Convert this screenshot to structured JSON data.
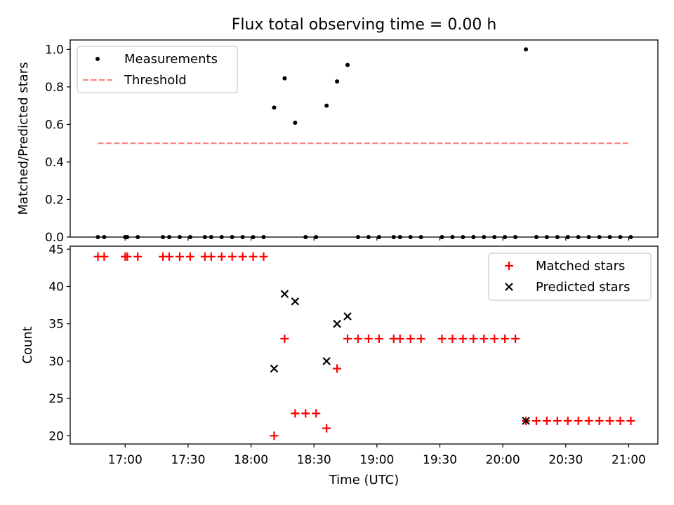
{
  "chart_data": {
    "title": "Flux total observing time = 0.00 h",
    "xlabel": "Time (UTC)",
    "x_ticks": [
      "17:00",
      "17:30",
      "18:00",
      "18:30",
      "19:00",
      "19:30",
      "20:00",
      "20:30",
      "21:00"
    ],
    "x_tick_minutes": [
      1020,
      1050,
      1080,
      1110,
      1140,
      1170,
      1200,
      1230,
      1260
    ],
    "x_range_minutes": [
      993.8,
      1273.9
    ],
    "panels": [
      {
        "type": "scatter",
        "ylabel": "Matched/Predicted stars",
        "ylim": [
          0,
          1.05
        ],
        "y_ticks": [
          0.0,
          0.2,
          0.4,
          0.6,
          0.8,
          1.0
        ],
        "legend_position": "upper-left",
        "series": [
          {
            "name": "Measurements",
            "marker": "dot",
            "color": "#000000",
            "x": [
              "16:47",
              "16:50",
              "17:00",
              "17:01",
              "17:06",
              "17:18",
              "17:21",
              "17:26",
              "17:31",
              "17:38",
              "17:41",
              "17:46",
              "17:51",
              "17:56",
              "18:01",
              "18:06",
              "18:11",
              "18:16",
              "18:21",
              "18:26",
              "18:31",
              "18:36",
              "18:41",
              "18:46",
              "18:51",
              "18:56",
              "19:01",
              "19:08",
              "19:11",
              "19:16",
              "19:21",
              "19:31",
              "19:36",
              "19:41",
              "19:46",
              "19:51",
              "19:56",
              "20:01",
              "20:06",
              "20:11",
              "20:16",
              "20:21",
              "20:26",
              "20:31",
              "20:36",
              "20:41",
              "20:46",
              "20:51",
              "20:56",
              "21:01"
            ],
            "y": [
              0,
              0,
              0,
              0,
              0,
              0,
              0,
              0,
              0,
              0,
              0,
              0,
              0,
              0,
              0,
              0,
              0.69,
              0.846,
              0.609,
              0,
              0,
              0.7,
              0.829,
              0.917,
              0,
              0,
              0,
              0,
              0,
              0,
              0,
              0,
              0,
              0,
              0,
              0,
              0,
              0,
              0,
              1.0,
              0,
              0,
              0,
              0,
              0,
              0,
              0,
              0,
              0,
              0
            ]
          },
          {
            "name": "Threshold",
            "style": "dashed",
            "color": "#ff7b7b",
            "x": [
              "16:47",
              "21:01"
            ],
            "y": [
              0.5,
              0.5
            ]
          }
        ]
      },
      {
        "type": "scatter",
        "ylabel": "Count",
        "ylim": [
          18.9,
          45.4
        ],
        "y_ticks": [
          20,
          25,
          30,
          35,
          40,
          45
        ],
        "legend_position": "upper-right",
        "series": [
          {
            "name": "Matched stars",
            "marker": "plus",
            "color": "#ff0000",
            "x": [
              "16:47",
              "16:50",
              "17:00",
              "17:01",
              "17:06",
              "17:18",
              "17:21",
              "17:26",
              "17:31",
              "17:38",
              "17:41",
              "17:46",
              "17:51",
              "17:56",
              "18:01",
              "18:06",
              "18:11",
              "18:16",
              "18:21",
              "18:26",
              "18:31",
              "18:36",
              "18:41",
              "18:46",
              "18:51",
              "18:56",
              "19:01",
              "19:08",
              "19:11",
              "19:16",
              "19:21",
              "19:31",
              "19:36",
              "19:41",
              "19:46",
              "19:51",
              "19:56",
              "20:01",
              "20:06",
              "20:11",
              "20:16",
              "20:21",
              "20:26",
              "20:31",
              "20:36",
              "20:41",
              "20:46",
              "20:51",
              "20:56",
              "21:01"
            ],
            "y": [
              44,
              44,
              44,
              44,
              44,
              44,
              44,
              44,
              44,
              44,
              44,
              44,
              44,
              44,
              44,
              44,
              20,
              33,
              23,
              23,
              23,
              21,
              29,
              33,
              33,
              33,
              33,
              33,
              33,
              33,
              33,
              33,
              33,
              33,
              33,
              33,
              33,
              33,
              33,
              22,
              22,
              22,
              22,
              22,
              22,
              22,
              22,
              22,
              22,
              22
            ]
          },
          {
            "name": "Predicted stars",
            "marker": "x",
            "color": "#000000",
            "x": [
              "18:11",
              "18:16",
              "18:21",
              "18:36",
              "18:41",
              "18:46",
              "20:11"
            ],
            "y": [
              29,
              39,
              38,
              30,
              35,
              36,
              22
            ]
          }
        ]
      }
    ]
  }
}
